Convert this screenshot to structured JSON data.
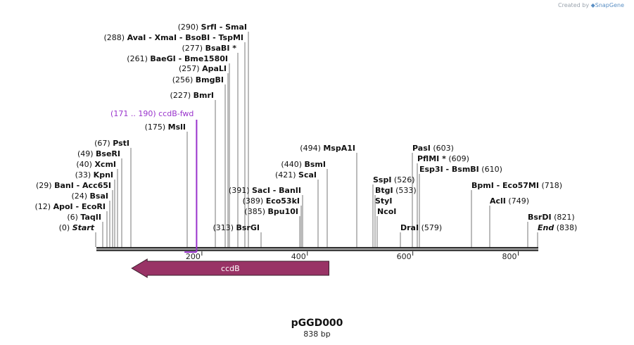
{
  "app": {
    "credit_prefix": "Created by",
    "credit_brand": "SnapGene",
    "credit_icon": "snapgene-logo-icon"
  },
  "sequence": {
    "name": "pGGD000",
    "length_label": "838 bp",
    "length_bp": 838
  },
  "ruler": {
    "ticks": [
      {
        "bp": 200,
        "label": "200"
      },
      {
        "bp": 400,
        "label": "400"
      },
      {
        "bp": 600,
        "label": "600"
      },
      {
        "bp": 800,
        "label": "800"
      }
    ]
  },
  "features": [
    {
      "name": "ccdB",
      "start": 67,
      "end": 441,
      "direction": "reverse",
      "color": "#993366"
    }
  ],
  "primers": [
    {
      "name": "ccdB-fwd",
      "range_label": "(171 .. 190)",
      "start": 171,
      "end": 190,
      "color": "#9933cc"
    }
  ],
  "sites": [
    {
      "pos": "(0)",
      "names": [
        "Start"
      ],
      "bp": 0,
      "italic": true
    },
    {
      "pos": "(6)",
      "names": [
        "TaqII"
      ],
      "bp": 6
    },
    {
      "pos": "(12)",
      "names": [
        "ApoI",
        "EcoRI"
      ],
      "bp": 12
    },
    {
      "pos": "(24)",
      "names": [
        "BsaI"
      ],
      "bp": 24
    },
    {
      "pos": "(29)",
      "names": [
        "BanI",
        "Acc65I"
      ],
      "bp": 29
    },
    {
      "pos": "(33)",
      "names": [
        "KpnI"
      ],
      "bp": 33
    },
    {
      "pos": "(40)",
      "names": [
        "XcmI"
      ],
      "bp": 40
    },
    {
      "pos": "(49)",
      "names": [
        "BseRI"
      ],
      "bp": 49
    },
    {
      "pos": "(67)",
      "names": [
        "PstI"
      ],
      "bp": 67
    },
    {
      "pos": "(175)",
      "names": [
        "MslI"
      ],
      "bp": 175
    },
    {
      "pos": "(227)",
      "names": [
        "BmrI"
      ],
      "bp": 227
    },
    {
      "pos": "(256)",
      "names": [
        "BmgBI"
      ],
      "bp": 256
    },
    {
      "pos": "(257)",
      "names": [
        "ApaLI"
      ],
      "bp": 257
    },
    {
      "pos": "(261)",
      "names": [
        "BaeGI",
        "Bme1580I"
      ],
      "bp": 261
    },
    {
      "pos": "(277)",
      "names": [
        "BsaBI *"
      ],
      "bp": 277
    },
    {
      "pos": "(288)",
      "names": [
        "AvaI",
        "XmaI",
        "BsoBI",
        "TspMI"
      ],
      "bp": 288
    },
    {
      "pos": "(290)",
      "names": [
        "SrfI",
        "SmaI"
      ],
      "bp": 290
    },
    {
      "pos": "(313)",
      "names": [
        "BsrGI"
      ],
      "bp": 313
    },
    {
      "pos": "(385)",
      "names": [
        "Bpu10I"
      ],
      "bp": 385
    },
    {
      "pos": "(389)",
      "names": [
        "Eco53kI"
      ],
      "bp": 389
    },
    {
      "pos": "(391)",
      "names": [
        "SacI",
        "BanII"
      ],
      "bp": 391
    },
    {
      "pos": "(421)",
      "names": [
        "ScaI"
      ],
      "bp": 421
    },
    {
      "pos": "(440)",
      "names": [
        "BsmI"
      ],
      "bp": 440
    },
    {
      "pos": "(494)",
      "names": [
        "MspA1I"
      ],
      "bp": 494
    },
    {
      "pos": "(526)",
      "names": [
        "SspI"
      ],
      "bp": 526
    },
    {
      "pos": "(533)",
      "names": [
        "BtgI"
      ],
      "bp": 533
    },
    {
      "pos": "",
      "names": [
        "StyI"
      ],
      "bp": 533
    },
    {
      "pos": "",
      "names": [
        "NcoI"
      ],
      "bp": 533
    },
    {
      "pos": "(579)",
      "names": [
        "DraI"
      ],
      "bp": 579
    },
    {
      "pos": "(603)",
      "names": [
        "PasI"
      ],
      "bp": 603
    },
    {
      "pos": "(609)",
      "names": [
        "PflMI *"
      ],
      "bp": 609
    },
    {
      "pos": "(610)",
      "names": [
        "Esp3I",
        "BsmBI"
      ],
      "bp": 610
    },
    {
      "pos": "(718)",
      "names": [
        "BpmI",
        "Eco57MI"
      ],
      "bp": 718
    },
    {
      "pos": "(749)",
      "names": [
        "AclI"
      ],
      "bp": 749
    },
    {
      "pos": "(821)",
      "names": [
        "BsrDI"
      ],
      "bp": 821
    },
    {
      "pos": "(838)",
      "names": [
        "End"
      ],
      "bp": 838,
      "italic": true
    }
  ]
}
